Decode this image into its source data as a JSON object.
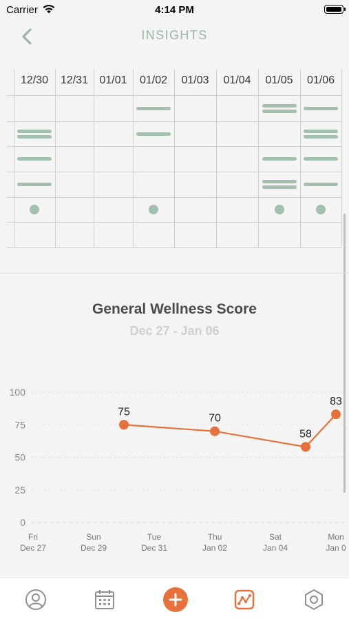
{
  "status": {
    "carrier": "Carrier",
    "time": "4:14 PM"
  },
  "nav": {
    "title": "INSIGHTS"
  },
  "grid": {
    "dates": [
      "12/30",
      "12/31",
      "01/01",
      "01/02",
      "01/03",
      "01/04",
      "01/05",
      "01/06"
    ],
    "cells": [
      {
        "date": "12/30",
        "row2": 2,
        "row3": 1,
        "row4": 1,
        "dot": true
      },
      {
        "date": "12/31",
        "dot": false
      },
      {
        "date": "01/01",
        "dot": false
      },
      {
        "date": "01/02",
        "row1": 1,
        "row2": 1,
        "dot": true
      },
      {
        "date": "01/03",
        "dot": false
      },
      {
        "date": "01/04",
        "dot": false
      },
      {
        "date": "01/05",
        "row1": 2,
        "row3": 1,
        "row4": 2,
        "dot": true
      },
      {
        "date": "01/06",
        "row1": 1,
        "row2": 2,
        "row3": 1,
        "row4": 1,
        "dot": true
      }
    ],
    "color": "#a3bfad"
  },
  "chart_title": "General Wellness Score",
  "chart_subtitle": "Dec 27 - Jan 06",
  "chart_data": {
    "type": "line",
    "title": "General Wellness Score",
    "subtitle": "Dec 27 - Jan 06",
    "x_ticks": [
      {
        "day": "Fri",
        "date": "Dec 27"
      },
      {
        "day": "Sun",
        "date": "Dec 29"
      },
      {
        "day": "Tue",
        "date": "Dec 31"
      },
      {
        "day": "Thu",
        "date": "Jan 02"
      },
      {
        "day": "Sat",
        "date": "Jan 04"
      },
      {
        "day": "Mon",
        "date": "Jan 0"
      }
    ],
    "x_range": [
      "Dec 27",
      "Jan 06"
    ],
    "y_ticks": [
      0,
      25,
      50,
      75,
      100
    ],
    "ylim": [
      0,
      100
    ],
    "series": [
      {
        "points": [
          {
            "x": "Dec 30",
            "y": 75
          },
          {
            "x": "Jan 02",
            "y": 70
          },
          {
            "x": "Jan 05",
            "y": 58
          },
          {
            "x": "Jan 06",
            "y": 83
          }
        ],
        "color": "#e8703a"
      }
    ],
    "grid": true
  },
  "tabs": [
    {
      "name": "profile",
      "icon": "user-icon"
    },
    {
      "name": "calendar",
      "icon": "calendar-icon"
    },
    {
      "name": "add",
      "icon": "plus-icon"
    },
    {
      "name": "insights",
      "icon": "insights-chart-icon"
    },
    {
      "name": "settings",
      "icon": "hexagon-settings-icon"
    }
  ],
  "colors": {
    "accent": "#e8703a",
    "sage": "#a3bfad",
    "title": "#9cb6a6"
  }
}
